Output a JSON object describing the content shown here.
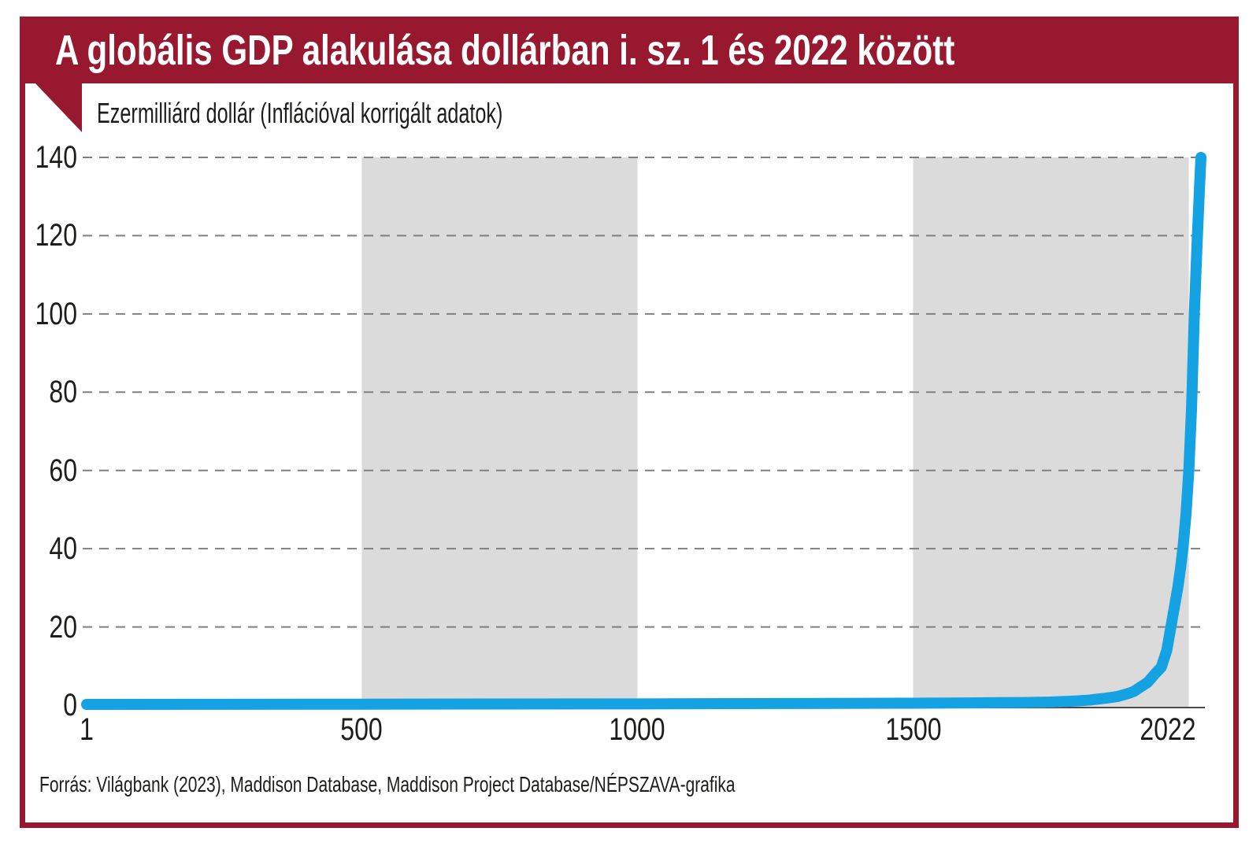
{
  "colors": {
    "banner_red": "#98192f",
    "line_blue": "#14a2e2",
    "band_gray": "#dbdbdb",
    "grid_gray": "#7f7f7f",
    "axis_dark": "#4a4a4a",
    "text_dark": "#1d1d1b",
    "title_white": "#ffffff"
  },
  "chart_data": {
    "type": "line",
    "title": "A globális GDP alakulása dollárban i. sz. 1 és 2022 között",
    "subtitle": "Ezermilliárd dollár (Inflációval korrigált adatok)",
    "source": "Forrás: Világbank (2023), Maddison Database, Maddison Project Database/NÉPSZAVA-grafika",
    "ylabel": "Ezermilliárd dollár",
    "xlabel": "",
    "xlim": [
      1,
      2022
    ],
    "ylim": [
      0,
      140
    ],
    "grid": "horizontal dashed",
    "legend": "none",
    "x_ticks": [
      "1",
      "500",
      "1000",
      "1500",
      "2022"
    ],
    "x_tick_years": [
      1,
      500,
      1000,
      1500,
      2022
    ],
    "y_ticks": [
      0,
      20,
      40,
      60,
      80,
      100,
      120,
      140
    ],
    "shaded_year_bands": [
      [
        500,
        1000
      ],
      [
        1500,
        2000
      ]
    ],
    "series": [
      {
        "name": "Globális GDP",
        "points": [
          [
            1,
            0.2
          ],
          [
            250,
            0.23
          ],
          [
            500,
            0.26
          ],
          [
            750,
            0.3
          ],
          [
            1000,
            0.33
          ],
          [
            1250,
            0.42
          ],
          [
            1500,
            0.5
          ],
          [
            1600,
            0.58
          ],
          [
            1700,
            0.68
          ],
          [
            1750,
            0.8
          ],
          [
            1800,
            1.1
          ],
          [
            1820,
            1.3
          ],
          [
            1850,
            1.8
          ],
          [
            1870,
            2.2
          ],
          [
            1890,
            3.0
          ],
          [
            1900,
            3.5
          ],
          [
            1913,
            4.7
          ],
          [
            1925,
            5.8
          ],
          [
            1940,
            8.2
          ],
          [
            1950,
            9.7
          ],
          [
            1960,
            14
          ],
          [
            1970,
            22
          ],
          [
            1975,
            26
          ],
          [
            1980,
            30
          ],
          [
            1985,
            35
          ],
          [
            1990,
            41
          ],
          [
            1995,
            49
          ],
          [
            2000,
            60
          ],
          [
            2005,
            76
          ],
          [
            2010,
            100
          ],
          [
            2015,
            118
          ],
          [
            2019,
            131
          ],
          [
            2022,
            140
          ]
        ]
      }
    ]
  }
}
